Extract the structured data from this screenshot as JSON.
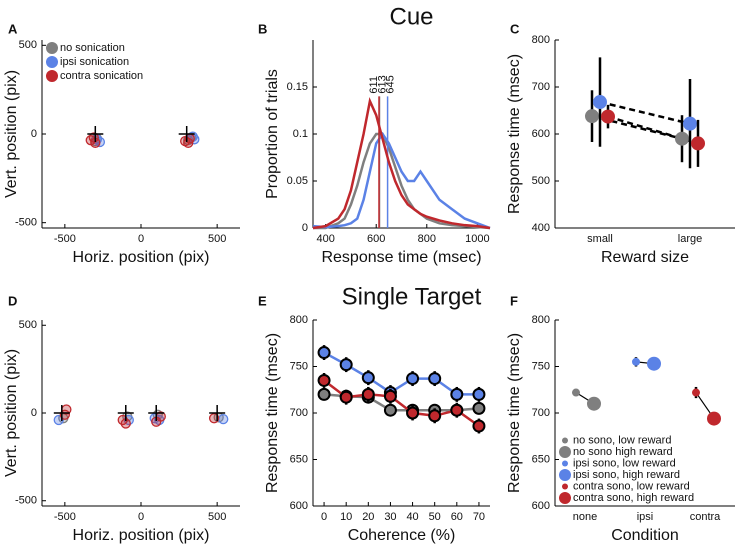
{
  "chart_data": [
    {
      "panel": "A",
      "type": "scatter",
      "xlabel": "Horiz. position (pix)",
      "ylabel": "Vert. position (pix)",
      "xlim": [
        -650,
        650
      ],
      "ylim": [
        -530,
        530
      ],
      "xticks": [
        -500,
        0,
        500
      ],
      "yticks": [
        -500,
        0,
        500
      ],
      "legend": "upper left",
      "targets": {
        "x": [
          -300,
          300
        ],
        "y": [
          0,
          0
        ]
      },
      "series": [
        {
          "name": "no sonication",
          "color": "#7f7f7f",
          "x": [
            -290,
            -300,
            330,
            310
          ],
          "y": [
            -25,
            -40,
            -20,
            -35
          ]
        },
        {
          "name": "ipsi sonication",
          "color": "#5b82e6",
          "x": [
            -270,
            -290,
            350,
            340
          ],
          "y": [
            -45,
            -30,
            -30,
            -15
          ]
        },
        {
          "name": "contra sonication",
          "color": "#c0282d",
          "x": [
            -310,
            -330,
            -300,
            290,
            310,
            320
          ],
          "y": [
            -20,
            -35,
            -50,
            -40,
            -50,
            -25
          ]
        }
      ]
    },
    {
      "panel": "B",
      "type": "line",
      "title": "Cue",
      "xlabel": "Response time (msec)",
      "ylabel": "Proportion of trials",
      "x": [
        350,
        400,
        450,
        475,
        500,
        525,
        550,
        575,
        600,
        625,
        650,
        675,
        700,
        725,
        750,
        775,
        800,
        850,
        900,
        950,
        1000,
        1050
      ],
      "xlim": [
        350,
        1050
      ],
      "ylim": [
        0,
        0.2
      ],
      "xticks": [
        400,
        600,
        800,
        1000
      ],
      "yticks": [
        0,
        0.05,
        0.1,
        0.15
      ],
      "series": [
        {
          "color": "#7f7f7f",
          "median": 613,
          "values": [
            0,
            0,
            0.005,
            0.01,
            0.025,
            0.045,
            0.07,
            0.09,
            0.1,
            0.1,
            0.085,
            0.065,
            0.045,
            0.03,
            0.02,
            0.015,
            0.01,
            0.005,
            0.003,
            0.002,
            0.001,
            0
          ]
        },
        {
          "color": "#5b82e6",
          "median": 645,
          "values": [
            0.002,
            0.001,
            0.002,
            0.003,
            0.005,
            0.01,
            0.03,
            0.06,
            0.09,
            0.1,
            0.09,
            0.075,
            0.06,
            0.05,
            0.05,
            0.06,
            0.05,
            0.03,
            0.02,
            0.01,
            0.005,
            0
          ]
        },
        {
          "color": "#c0282d",
          "median": 611,
          "values": [
            0,
            0.002,
            0.01,
            0.02,
            0.04,
            0.07,
            0.1,
            0.135,
            0.12,
            0.095,
            0.07,
            0.05,
            0.035,
            0.025,
            0.02,
            0.015,
            0.012,
            0.008,
            0.005,
            0.003,
            0.002,
            0
          ]
        }
      ]
    },
    {
      "panel": "C",
      "type": "dot",
      "xlabel": "Reward size",
      "ylabel": "Response time (msec)",
      "categories": [
        "small",
        "large"
      ],
      "ylim": [
        400,
        800
      ],
      "yticks": [
        400,
        500,
        600,
        700,
        800
      ],
      "connector": "dashed",
      "series": [
        {
          "color": "#7f7f7f",
          "values": [
            638,
            590
          ],
          "errors": [
            55,
            50
          ]
        },
        {
          "color": "#5b82e6",
          "values": [
            668,
            622
          ],
          "errors": [
            95,
            95
          ]
        },
        {
          "color": "#c0282d",
          "values": [
            637,
            580
          ],
          "errors": [
            25,
            50
          ]
        }
      ]
    },
    {
      "panel": "D",
      "type": "scatter",
      "xlabel": "Horiz. position (pix)",
      "ylabel": "Vert. position (pix)",
      "xlim": [
        -650,
        650
      ],
      "ylim": [
        -530,
        530
      ],
      "xticks": [
        -500,
        0,
        500
      ],
      "yticks": [
        -500,
        0,
        500
      ],
      "targets": {
        "x": [
          -520,
          -100,
          100,
          500
        ],
        "y": [
          0,
          0,
          0,
          0
        ]
      },
      "series": [
        {
          "color": "#7f7f7f",
          "x": [
            -510,
            -90,
            110,
            510
          ],
          "y": [
            -30,
            -20,
            -10,
            -25
          ]
        },
        {
          "color": "#5b82e6",
          "x": [
            -540,
            -80,
            90,
            120,
            540
          ],
          "y": [
            -40,
            -40,
            -30,
            -40,
            -35
          ]
        },
        {
          "color": "#c0282d",
          "x": [
            -500,
            -490,
            -120,
            -100,
            100,
            130,
            480
          ],
          "y": [
            -10,
            20,
            -40,
            -60,
            -50,
            -20,
            -30
          ]
        }
      ]
    },
    {
      "panel": "E",
      "type": "line",
      "title": "Single Target",
      "xlabel": "Coherence (%)",
      "ylabel": "Response time (msec)",
      "x": [
        0,
        10,
        20,
        30,
        40,
        50,
        60,
        70
      ],
      "xlim": [
        -5,
        75
      ],
      "ylim": [
        600,
        800
      ],
      "xticks": [
        0,
        10,
        20,
        30,
        40,
        50,
        60,
        70
      ],
      "yticks": [
        600,
        650,
        700,
        750,
        800
      ],
      "markers": true,
      "series": [
        {
          "color": "#7f7f7f",
          "values": [
            720,
            718,
            717,
            703,
            703,
            703,
            703,
            705
          ],
          "errors": [
            6,
            6,
            6,
            6,
            6,
            6,
            6,
            6
          ]
        },
        {
          "color": "#5b82e6",
          "values": [
            765,
            752,
            738,
            722,
            737,
            737,
            720,
            720
          ],
          "errors": [
            8,
            8,
            8,
            8,
            8,
            8,
            8,
            8
          ]
        },
        {
          "color": "#c0282d",
          "values": [
            735,
            717,
            720,
            718,
            700,
            697,
            703,
            686
          ],
          "errors": [
            8,
            8,
            8,
            8,
            8,
            8,
            8,
            8
          ]
        }
      ]
    },
    {
      "panel": "F",
      "type": "dot",
      "xlabel": "Condition",
      "ylabel": "Response time (msec)",
      "categories": [
        "none",
        "ipsi",
        "contra"
      ],
      "ylim": [
        600,
        800
      ],
      "yticks": [
        600,
        650,
        700,
        750,
        800
      ],
      "legend": "lower left",
      "series": [
        {
          "name": "no sono, low reward",
          "color": "#7f7f7f",
          "marker": "small",
          "values": [
            722,
            null,
            null
          ],
          "errors": [
            3,
            null,
            null
          ]
        },
        {
          "name": "no sono high reward",
          "color": "#7f7f7f",
          "marker": "large",
          "values": [
            710,
            null,
            null
          ],
          "errors": [
            3,
            null,
            null
          ]
        },
        {
          "name": "ipsi sono, low reward",
          "color": "#5b82e6",
          "marker": "small",
          "values": [
            null,
            755,
            null
          ],
          "errors": [
            null,
            5,
            null
          ]
        },
        {
          "name": "ipsi sono, high reward",
          "color": "#5b82e6",
          "marker": "large",
          "values": [
            null,
            753,
            null
          ],
          "errors": [
            null,
            3,
            null
          ]
        },
        {
          "name": "contra sono, low reward",
          "color": "#c0282d",
          "marker": "small",
          "values": [
            null,
            null,
            722
          ],
          "errors": [
            null,
            null,
            6
          ]
        },
        {
          "name": "contra sono, high reward",
          "color": "#c0282d",
          "marker": "large",
          "values": [
            null,
            null,
            694
          ],
          "errors": [
            null,
            null,
            3
          ]
        }
      ]
    }
  ]
}
